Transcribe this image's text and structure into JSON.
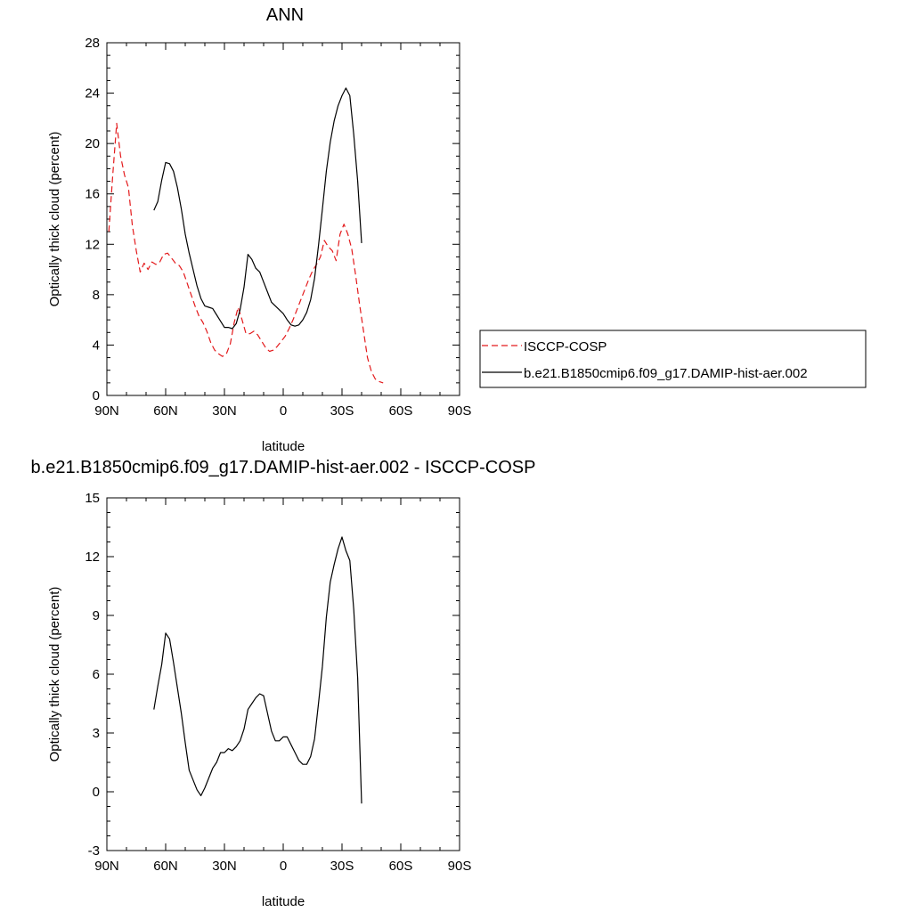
{
  "chart_data": [
    {
      "type": "line",
      "title": "ANN",
      "xlabel": "latitude",
      "ylabel": "Optically thick cloud (percent)",
      "xlim": [
        -90,
        90
      ],
      "ylim": [
        0,
        28
      ],
      "x_ticks": [
        {
          "value": -90,
          "label": "90N"
        },
        {
          "value": -60,
          "label": "60N"
        },
        {
          "value": -30,
          "label": "30N"
        },
        {
          "value": 0,
          "label": "0"
        },
        {
          "value": 30,
          "label": "30S"
        },
        {
          "value": 60,
          "label": "60S"
        },
        {
          "value": 90,
          "label": "90S"
        }
      ],
      "y_ticks": [
        0,
        4,
        8,
        12,
        16,
        20,
        24,
        28
      ],
      "legend_position": "right",
      "series": [
        {
          "name": "ISCCP-COSP",
          "color": "#e31a1c",
          "dash": true,
          "points": [
            [
              -89,
              13
            ],
            [
              -87,
              17.5
            ],
            [
              -85,
              21.6
            ],
            [
              -83,
              19
            ],
            [
              -81,
              17.5
            ],
            [
              -79,
              16.5
            ],
            [
              -77,
              13.5
            ],
            [
              -75,
              11.5
            ],
            [
              -73,
              9.8
            ],
            [
              -71,
              10.5
            ],
            [
              -69,
              10
            ],
            [
              -67,
              10.6
            ],
            [
              -65,
              10.4
            ],
            [
              -63,
              10.6
            ],
            [
              -61,
              11.2
            ],
            [
              -59,
              11.3
            ],
            [
              -57,
              10.9
            ],
            [
              -55,
              10.5
            ],
            [
              -53,
              10.3
            ],
            [
              -51,
              9.8
            ],
            [
              -49,
              8.9
            ],
            [
              -47,
              8
            ],
            [
              -45,
              7.1
            ],
            [
              -43,
              6.3
            ],
            [
              -41,
              5.8
            ],
            [
              -39,
              5.1
            ],
            [
              -37,
              4.2
            ],
            [
              -35,
              3.6
            ],
            [
              -33,
              3.3
            ],
            [
              -31,
              3.1
            ],
            [
              -29,
              3.3
            ],
            [
              -27,
              4.1
            ],
            [
              -25,
              5.8
            ],
            [
              -23,
              7
            ],
            [
              -21,
              6
            ],
            [
              -19,
              4.9
            ],
            [
              -17,
              4.9
            ],
            [
              -15,
              5.1
            ],
            [
              -13,
              4.8
            ],
            [
              -11,
              4.3
            ],
            [
              -9,
              3.8
            ],
            [
              -7,
              3.5
            ],
            [
              -5,
              3.6
            ],
            [
              -3,
              3.9
            ],
            [
              -1,
              4.3
            ],
            [
              1,
              4.7
            ],
            [
              3,
              5.3
            ],
            [
              5,
              6
            ],
            [
              7,
              6.8
            ],
            [
              9,
              7.6
            ],
            [
              11,
              8.4
            ],
            [
              13,
              9.2
            ],
            [
              15,
              9.9
            ],
            [
              17,
              10.4
            ],
            [
              19,
              11
            ],
            [
              21,
              12.3
            ],
            [
              23,
              11.8
            ],
            [
              25,
              11.5
            ],
            [
              27,
              10.7
            ],
            [
              29,
              12.8
            ],
            [
              31,
              13.6
            ],
            [
              33,
              12.8
            ],
            [
              35,
              11.6
            ],
            [
              37,
              9.5
            ],
            [
              39,
              7.2
            ],
            [
              41,
              5.1
            ],
            [
              43,
              3
            ],
            [
              45,
              1.9
            ],
            [
              47,
              1.3
            ],
            [
              49,
              1.1
            ],
            [
              51,
              1
            ]
          ]
        },
        {
          "name": "b.e21.B1850cmip6.f09_g17.DAMIP-hist-aer.002",
          "color": "#000000",
          "dash": false,
          "points": [
            [
              -66,
              14.7
            ],
            [
              -64,
              15.4
            ],
            [
              -62,
              17.1
            ],
            [
              -60,
              18.5
            ],
            [
              -58,
              18.4
            ],
            [
              -56,
              17.8
            ],
            [
              -54,
              16.5
            ],
            [
              -52,
              14.8
            ],
            [
              -50,
              12.8
            ],
            [
              -48,
              11.3
            ],
            [
              -46,
              10
            ],
            [
              -44,
              8.7
            ],
            [
              -42,
              7.7
            ],
            [
              -40,
              7.1
            ],
            [
              -38,
              7
            ],
            [
              -36,
              6.9
            ],
            [
              -34,
              6.4
            ],
            [
              -32,
              5.9
            ],
            [
              -30,
              5.4
            ],
            [
              -28,
              5.4
            ],
            [
              -26,
              5.3
            ],
            [
              -24,
              5.7
            ],
            [
              -22,
              6.8
            ],
            [
              -20,
              8.6
            ],
            [
              -18,
              11.2
            ],
            [
              -16,
              10.8
            ],
            [
              -14,
              10.1
            ],
            [
              -12,
              9.8
            ],
            [
              -10,
              9
            ],
            [
              -8,
              8.2
            ],
            [
              -6,
              7.4
            ],
            [
              -4,
              7.1
            ],
            [
              -2,
              6.8
            ],
            [
              0,
              6.5
            ],
            [
              2,
              6
            ],
            [
              4,
              5.6
            ],
            [
              6,
              5.5
            ],
            [
              8,
              5.6
            ],
            [
              10,
              6
            ],
            [
              12,
              6.6
            ],
            [
              14,
              7.6
            ],
            [
              16,
              9.3
            ],
            [
              18,
              11.9
            ],
            [
              20,
              14.8
            ],
            [
              22,
              17.8
            ],
            [
              24,
              20.1
            ],
            [
              26,
              21.8
            ],
            [
              28,
              23
            ],
            [
              30,
              23.8
            ],
            [
              32,
              24.4
            ],
            [
              34,
              23.8
            ],
            [
              36,
              20.7
            ],
            [
              38,
              17
            ],
            [
              40,
              12.1
            ]
          ]
        }
      ]
    },
    {
      "type": "line",
      "title": "b.e21.B1850cmip6.f09_g17.DAMIP-hist-aer.002 - ISCCP-COSP",
      "xlabel": "latitude",
      "ylabel": "Optically thick cloud (percent)",
      "xlim": [
        -90,
        90
      ],
      "ylim": [
        -3,
        15
      ],
      "x_ticks": [
        {
          "value": -90,
          "label": "90N"
        },
        {
          "value": -60,
          "label": "60N"
        },
        {
          "value": -30,
          "label": "30N"
        },
        {
          "value": 0,
          "label": "0"
        },
        {
          "value": 30,
          "label": "30S"
        },
        {
          "value": 60,
          "label": "60S"
        },
        {
          "value": 90,
          "label": "90S"
        }
      ],
      "y_ticks": [
        -3,
        0,
        3,
        6,
        9,
        12,
        15
      ],
      "series": [
        {
          "color": "#000000",
          "dash": false,
          "points": [
            [
              -66,
              4.2
            ],
            [
              -64,
              5.4
            ],
            [
              -62,
              6.5
            ],
            [
              -60,
              8.1
            ],
            [
              -58,
              7.8
            ],
            [
              -56,
              6.6
            ],
            [
              -54,
              5.3
            ],
            [
              -52,
              4
            ],
            [
              -50,
              2.5
            ],
            [
              -48,
              1.1
            ],
            [
              -46,
              0.6
            ],
            [
              -44,
              0.1
            ],
            [
              -42,
              -0.2
            ],
            [
              -40,
              0.2
            ],
            [
              -38,
              0.7
            ],
            [
              -36,
              1.2
            ],
            [
              -34,
              1.5
            ],
            [
              -32,
              2
            ],
            [
              -30,
              2
            ],
            [
              -28,
              2.2
            ],
            [
              -26,
              2.1
            ],
            [
              -24,
              2.3
            ],
            [
              -22,
              2.6
            ],
            [
              -20,
              3.2
            ],
            [
              -18,
              4.2
            ],
            [
              -16,
              4.5
            ],
            [
              -14,
              4.8
            ],
            [
              -12,
              5
            ],
            [
              -10,
              4.9
            ],
            [
              -8,
              4
            ],
            [
              -6,
              3.1
            ],
            [
              -4,
              2.6
            ],
            [
              -2,
              2.6
            ],
            [
              0,
              2.8
            ],
            [
              2,
              2.8
            ],
            [
              4,
              2.4
            ],
            [
              6,
              2
            ],
            [
              8,
              1.6
            ],
            [
              10,
              1.4
            ],
            [
              12,
              1.4
            ],
            [
              14,
              1.8
            ],
            [
              16,
              2.7
            ],
            [
              18,
              4.5
            ],
            [
              20,
              6.4
            ],
            [
              22,
              8.9
            ],
            [
              24,
              10.7
            ],
            [
              26,
              11.6
            ],
            [
              28,
              12.4
            ],
            [
              30,
              13
            ],
            [
              32,
              12.3
            ],
            [
              34,
              11.8
            ],
            [
              36,
              9.3
            ],
            [
              38,
              5.8
            ],
            [
              40,
              -0.6
            ]
          ]
        }
      ]
    }
  ]
}
